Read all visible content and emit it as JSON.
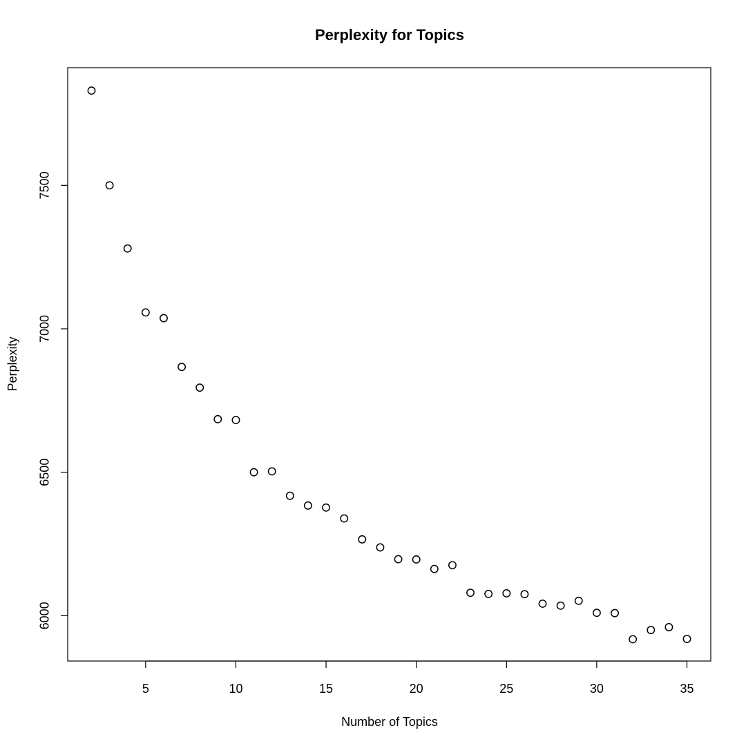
{
  "chart_data": {
    "type": "scatter",
    "title": "Perplexity for Topics",
    "xlabel": "Number of Topics",
    "ylabel": "Perplexity",
    "xlim": [
      0.68,
      36.32
    ],
    "ylim": [
      5842,
      7910
    ],
    "x_ticks": [
      5,
      10,
      15,
      20,
      25,
      30,
      35
    ],
    "y_ticks": [
      6000,
      6500,
      7000,
      7500
    ],
    "grid": false,
    "legend": "none",
    "marker": "open-circle",
    "colors": {
      "marker": "#000000",
      "axis": "#000000",
      "background": "#ffffff"
    },
    "x": [
      2,
      3,
      4,
      5,
      6,
      7,
      8,
      9,
      10,
      11,
      12,
      13,
      14,
      15,
      16,
      17,
      18,
      19,
      20,
      21,
      22,
      23,
      24,
      25,
      26,
      27,
      28,
      29,
      30,
      31,
      32,
      33,
      34,
      35
    ],
    "y": [
      7830,
      7500,
      7280,
      7057,
      7037,
      6867,
      6795,
      6685,
      6682,
      6500,
      6503,
      6418,
      6384,
      6377,
      6339,
      6266,
      6238,
      6197,
      6196,
      6163,
      6176,
      6080,
      6076,
      6078,
      6075,
      6042,
      6035,
      6052,
      6010,
      6009,
      5918,
      5950,
      5960,
      5919
    ]
  }
}
